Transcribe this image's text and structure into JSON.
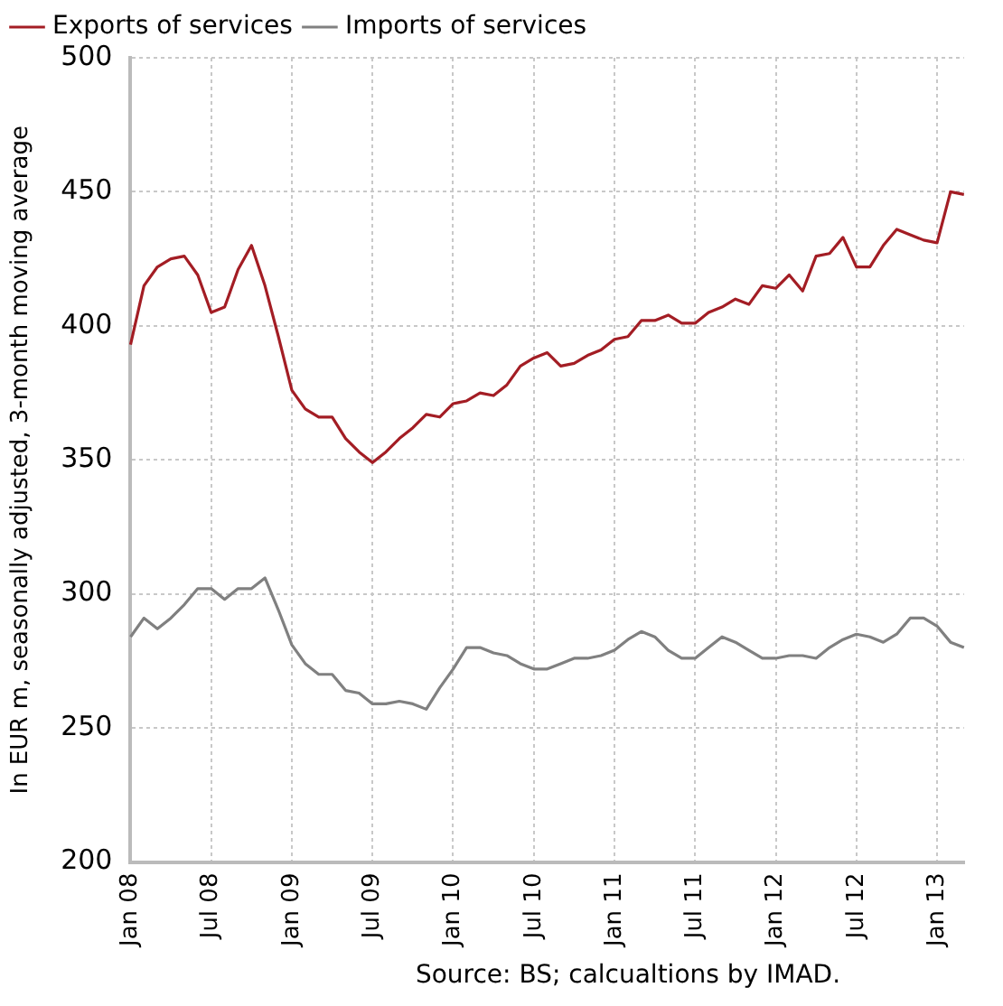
{
  "chart_data": {
    "type": "line",
    "ylabel": "In EUR m, seasonally adjusted, 3-month moving average",
    "categories": [
      "Jan 08",
      null,
      null,
      null,
      null,
      null,
      "Jul 08",
      null,
      null,
      null,
      null,
      null,
      "Jan 09",
      null,
      null,
      null,
      null,
      null,
      "Jul 09",
      null,
      null,
      null,
      null,
      null,
      "Jan 10",
      null,
      null,
      null,
      null,
      null,
      "Jul 10",
      null,
      null,
      null,
      null,
      null,
      "Jan 11",
      null,
      null,
      null,
      null,
      null,
      "Jul 11",
      null,
      null,
      null,
      null,
      null,
      "Jan 12",
      null,
      null,
      null,
      null,
      null,
      "Jul 12",
      null,
      null,
      null,
      null,
      null,
      "Jan 13",
      null,
      null
    ],
    "series": [
      {
        "name": "Exports of services",
        "color": "#a31d24",
        "values": [
          393,
          415,
          422,
          425,
          426,
          419,
          405,
          407,
          421,
          430,
          415,
          396,
          376,
          369,
          366,
          366,
          358,
          353,
          349,
          353,
          358,
          362,
          367,
          366,
          371,
          372,
          375,
          374,
          378,
          385,
          388,
          390,
          385,
          386,
          389,
          391,
          395,
          396,
          402,
          402,
          404,
          401,
          401,
          405,
          407,
          410,
          408,
          415,
          414,
          419,
          413,
          426,
          427,
          433,
          422,
          422,
          430,
          436,
          434,
          432,
          431,
          450,
          449
        ]
      },
      {
        "name": "Imports of services",
        "color": "#808080",
        "values": [
          284,
          291,
          287,
          291,
          296,
          302,
          302,
          298,
          302,
          302,
          306,
          294,
          281,
          274,
          270,
          270,
          264,
          263,
          259,
          259,
          260,
          259,
          257,
          265,
          272,
          280,
          280,
          278,
          277,
          274,
          272,
          272,
          274,
          276,
          276,
          277,
          279,
          283,
          286,
          284,
          279,
          276,
          276,
          280,
          284,
          282,
          279,
          276,
          276,
          277,
          277,
          276,
          280,
          283,
          285,
          284,
          282,
          285,
          291,
          291,
          288,
          282,
          280
        ]
      }
    ],
    "ylim": [
      200,
      500
    ],
    "yticks": [
      200,
      250,
      300,
      350,
      400,
      450,
      500
    ],
    "grid": true,
    "legend": "top",
    "marker": "none",
    "line_style": "solid",
    "annotations": [
      "Source: BS; calcualtions by IMAD."
    ]
  }
}
